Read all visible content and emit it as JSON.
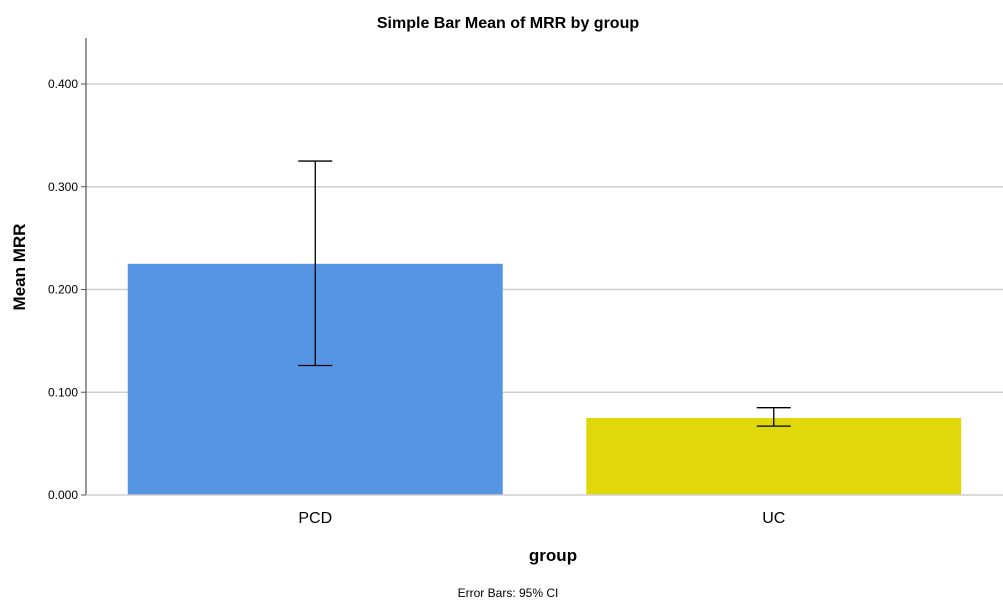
{
  "chart_data": {
    "type": "bar",
    "title": "Simple Bar Mean of MRR by group",
    "xlabel": "group",
    "ylabel": "Mean MRR",
    "ylim": [
      0,
      0.44
    ],
    "yticks": [
      "0.000",
      "0.100",
      "0.200",
      "0.300",
      "0.400"
    ],
    "ytick_values": [
      0,
      0.1,
      0.2,
      0.3,
      0.4
    ],
    "grid": "horizontal",
    "categories": [
      "PCD",
      "UC"
    ],
    "values": [
      0.225,
      0.075
    ],
    "error_low": [
      0.126,
      0.067
    ],
    "error_high": [
      0.325,
      0.085
    ],
    "colors": [
      "#5595e4",
      "#e1d80c"
    ],
    "footnote": "Error Bars: 95% CI"
  }
}
